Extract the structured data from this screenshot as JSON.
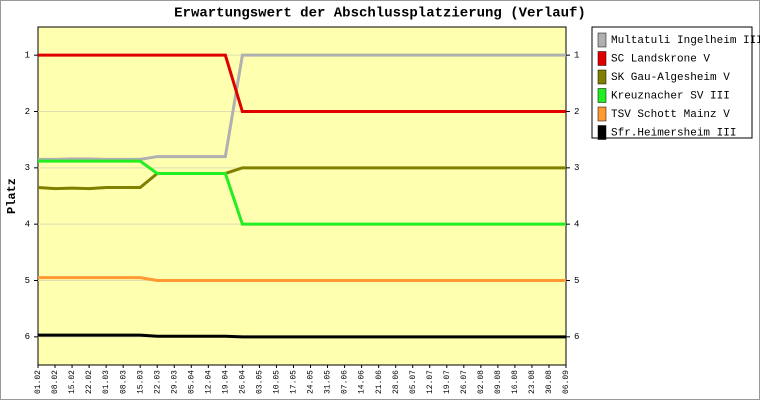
{
  "chart_data": {
    "type": "line",
    "title": "Erwartungswert der Abschlussplatzierung (Verlauf)",
    "y_label": "Platz",
    "categories": [
      "01.02",
      "08.02",
      "15.02",
      "22.02",
      "01.03",
      "08.03",
      "15.03",
      "22.03",
      "29.03",
      "05.04",
      "12.04",
      "19.04",
      "26.04",
      "03.05",
      "10.05",
      "17.05",
      "24.05",
      "31.05",
      "07.06",
      "14.06",
      "21.06",
      "28.06",
      "05.07",
      "12.07",
      "19.07",
      "26.07",
      "02.08",
      "09.08",
      "16.08",
      "23.08",
      "30.08",
      "06.09"
    ],
    "ylim": [
      0.5,
      6.5
    ],
    "y_inverted": true,
    "yticks": [
      1,
      2,
      3,
      4,
      5,
      6
    ],
    "grid": true,
    "legend": "right",
    "series": [
      {
        "name": "Multatuli Ingelheim III",
        "color": "#b0b0b0",
        "values": [
          2.85,
          2.85,
          2.84,
          2.84,
          2.85,
          2.85,
          2.85,
          2.8,
          2.8,
          2.8,
          2.8,
          2.8,
          1,
          1,
          1,
          1,
          1,
          1,
          1,
          1,
          1,
          1,
          1,
          1,
          1,
          1,
          1,
          1,
          1,
          1,
          1,
          1
        ]
      },
      {
        "name": "SC Landskrone V",
        "color": "#e00000",
        "values": [
          1,
          1,
          1,
          1,
          1,
          1,
          1,
          1,
          1,
          1,
          1,
          1,
          2,
          2,
          2,
          2,
          2,
          2,
          2,
          2,
          2,
          2,
          2,
          2,
          2,
          2,
          2,
          2,
          2,
          2,
          2,
          2
        ]
      },
      {
        "name": "SK Gau-Algesheim V",
        "color": "#808000",
        "values": [
          3.35,
          3.37,
          3.36,
          3.37,
          3.35,
          3.35,
          3.35,
          3.1,
          3.1,
          3.1,
          3.1,
          3.1,
          3,
          3,
          3,
          3,
          3,
          3,
          3,
          3,
          3,
          3,
          3,
          3,
          3,
          3,
          3,
          3,
          3,
          3,
          3,
          3
        ]
      },
      {
        "name": "Kreuznacher SV III",
        "color": "#22ee22",
        "values": [
          2.88,
          2.88,
          2.88,
          2.88,
          2.88,
          2.88,
          2.88,
          3.1,
          3.1,
          3.1,
          3.1,
          3.1,
          4,
          4,
          4,
          4,
          4,
          4,
          4,
          4,
          4,
          4,
          4,
          4,
          4,
          4,
          4,
          4,
          4,
          4,
          4,
          4
        ]
      },
      {
        "name": "TSV Schott Mainz V",
        "color": "#ff9933",
        "values": [
          4.95,
          4.95,
          4.95,
          4.95,
          4.95,
          4.95,
          4.95,
          5,
          5,
          5,
          5,
          5,
          5,
          5,
          5,
          5,
          5,
          5,
          5,
          5,
          5,
          5,
          5,
          5,
          5,
          5,
          5,
          5,
          5,
          5,
          5,
          5
        ]
      },
      {
        "name": "Sfr.Heimersheim III",
        "color": "#000000",
        "values": [
          5.97,
          5.97,
          5.97,
          5.97,
          5.97,
          5.97,
          5.97,
          5.99,
          5.99,
          5.99,
          5.99,
          5.99,
          6,
          6,
          6,
          6,
          6,
          6,
          6,
          6,
          6,
          6,
          6,
          6,
          6,
          6,
          6,
          6,
          6,
          6,
          6,
          6
        ]
      }
    ]
  }
}
